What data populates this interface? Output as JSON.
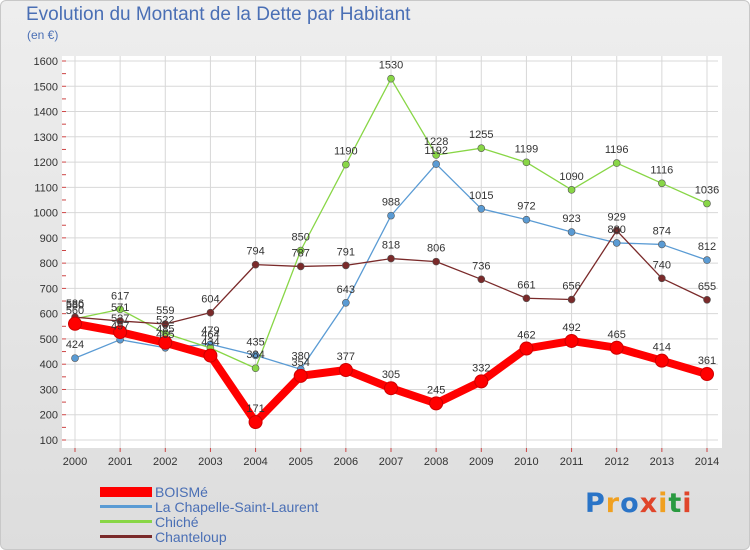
{
  "title": "Evolution du Montant de la Dette par Habitant",
  "unit": "(en €)",
  "logo": "Proxiti",
  "logo_colors": [
    "#2a74c7",
    "#f0a020",
    "#2a74c7",
    "#e0452a",
    "#f0a020",
    "#2a9a40",
    "#e0452a"
  ],
  "chart_data": {
    "type": "line",
    "title": "Evolution du Montant de la Dette par Habitant",
    "ylabel": "(en €)",
    "xlabel": "",
    "x": [
      "2000",
      "2001",
      "2002",
      "2003",
      "2004",
      "2005",
      "2006",
      "2007",
      "2008",
      "2009",
      "2010",
      "2011",
      "2012",
      "2013",
      "2014"
    ],
    "ylim": [
      100,
      1600
    ],
    "yticks": [
      100,
      200,
      300,
      400,
      500,
      600,
      700,
      800,
      900,
      1000,
      1100,
      1200,
      1300,
      1400,
      1500,
      1600
    ],
    "grid": true,
    "legend_position": "bottom-left",
    "series": [
      {
        "name": "BOISMé",
        "color": "#ff0000",
        "values": [
          560,
          527,
          485,
          434,
          171,
          354,
          377,
          305,
          245,
          332,
          462,
          492,
          465,
          414,
          361
        ]
      },
      {
        "name": "La Chapelle-Saint-Laurent",
        "color": "#5a9bd4",
        "values": [
          424,
          497,
          465,
          479,
          435,
          380,
          643,
          988,
          1192,
          1015,
          972,
          923,
          880,
          874,
          812
        ]
      },
      {
        "name": "Chiché",
        "color": "#88d646",
        "values": [
          580,
          617,
          522,
          464,
          384,
          850,
          1190,
          1530,
          1228,
          1255,
          1199,
          1090,
          1196,
          1116,
          1036
        ]
      },
      {
        "name": "Chanteloup",
        "color": "#7a2a2a",
        "values": [
          586,
          571,
          559,
          604,
          794,
          787,
          791,
          818,
          806,
          736,
          661,
          656,
          929,
          740,
          655
        ]
      }
    ]
  }
}
